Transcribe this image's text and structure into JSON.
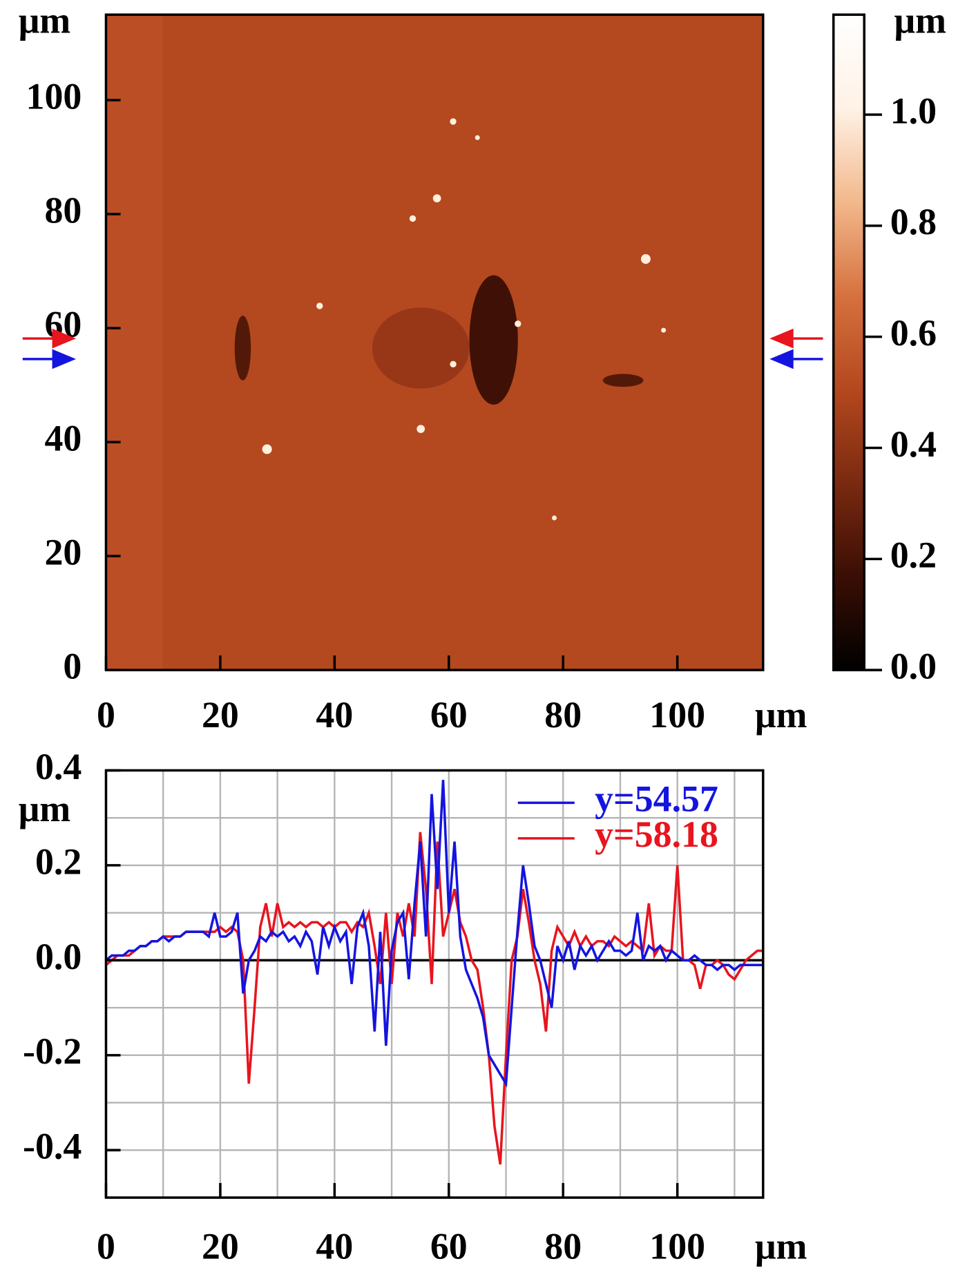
{
  "chart_data": [
    {
      "type": "image",
      "x_unit": "μm",
      "y_unit": "μm",
      "xlim": [
        0,
        115
      ],
      "ylim": [
        0,
        115
      ],
      "xticks": [
        0,
        20,
        40,
        60,
        80,
        100
      ],
      "yticks": [
        0,
        20,
        40,
        60,
        80,
        100
      ],
      "colorbar": {
        "unit": "μm",
        "lim": [
          0,
          1.18
        ],
        "ticks": [
          {
            "value": 0,
            "label": "0.0"
          },
          0.2,
          0.4,
          0.6,
          0.8,
          {
            "value": 1,
            "label": "1.0"
          }
        ],
        "colormap": [
          "#000000",
          "#3a0e04",
          "#7a2a10",
          "#b4481f",
          "#d6713f",
          "#f2b88c",
          "#fff2e6",
          "#ffffff"
        ]
      },
      "profile_lines": [
        {
          "y": 58.18,
          "color": "#e8141e"
        },
        {
          "y": 54.57,
          "color": "#1414e0"
        }
      ]
    },
    {
      "type": "line",
      "x_unit": "μm",
      "y_unit": "μm",
      "xlim": [
        0,
        115
      ],
      "ylim": [
        -0.5,
        0.4
      ],
      "xticks": [
        0,
        20,
        40,
        60,
        80,
        100
      ],
      "yticks": [
        0.4,
        0.2,
        {
          "value": 0,
          "label": "0.0"
        },
        -0.2,
        -0.4
      ],
      "grid": true,
      "xgrid": [
        0,
        10,
        20,
        30,
        40,
        50,
        60,
        70,
        80,
        90,
        100,
        110
      ],
      "ygrid": [
        -0.5,
        -0.4,
        -0.3,
        -0.2,
        -0.1,
        0,
        0.1,
        0.2,
        0.3,
        0.4
      ],
      "legend": "upper right",
      "x": [
        0,
        1,
        2,
        3,
        4,
        5,
        6,
        7,
        8,
        9,
        10,
        11,
        12,
        13,
        14,
        15,
        16,
        17,
        18,
        19,
        20,
        21,
        22,
        23,
        24,
        25,
        26,
        27,
        28,
        29,
        30,
        31,
        32,
        33,
        34,
        35,
        36,
        37,
        38,
        39,
        40,
        41,
        42,
        43,
        44,
        45,
        46,
        47,
        48,
        49,
        50,
        51,
        52,
        53,
        54,
        55,
        56,
        57,
        58,
        59,
        60,
        61,
        62,
        63,
        64,
        65,
        66,
        67,
        68,
        69,
        70,
        71,
        72,
        73,
        74,
        75,
        76,
        77,
        78,
        79,
        80,
        81,
        82,
        83,
        84,
        85,
        86,
        87,
        88,
        89,
        90,
        91,
        92,
        93,
        94,
        95,
        96,
        97,
        98,
        99,
        100,
        101,
        102,
        103,
        104,
        105,
        106,
        107,
        108,
        109,
        110,
        111,
        112,
        113,
        114,
        115
      ],
      "series": [
        {
          "name": "y=54.57",
          "color": "#1414e0",
          "values": [
            0,
            0.01,
            0.01,
            0.01,
            0.02,
            0.02,
            0.03,
            0.03,
            0.04,
            0.04,
            0.05,
            0.04,
            0.05,
            0.05,
            0.06,
            0.06,
            0.06,
            0.06,
            0.05,
            0.1,
            0.05,
            0.05,
            0.06,
            0.1,
            -0.07,
            0,
            0.02,
            0.05,
            0.04,
            0.06,
            0.05,
            0.06,
            0.04,
            0.05,
            0.03,
            0.06,
            0.04,
            -0.03,
            0.07,
            0.03,
            0.07,
            0.04,
            0.06,
            -0.05,
            0.07,
            0.1,
            0.03,
            -0.15,
            0.06,
            -0.18,
            0.02,
            0.08,
            0.1,
            -0.04,
            0.12,
            0.25,
            0.05,
            0.35,
            0.15,
            0.38,
            0.1,
            0.25,
            0.05,
            -0.02,
            -0.05,
            -0.08,
            -0.12,
            -0.2,
            -0.22,
            -0.24,
            -0.26,
            -0.1,
            0.06,
            0.2,
            0.12,
            0.03,
            0,
            -0.05,
            -0.1,
            0.03,
            0,
            0.04,
            -0.02,
            0.03,
            0.01,
            0.03,
            0,
            0.02,
            0.04,
            0.02,
            0.02,
            0.01,
            0.02,
            0.1,
            0,
            0.03,
            0.02,
            0.03,
            0,
            0.02,
            0.01,
            0,
            0,
            0.01,
            0,
            -0.01,
            -0.01,
            -0.02,
            -0.01,
            -0.01,
            -0.02,
            -0.01,
            -0.01,
            -0.01,
            -0.01,
            -0.01
          ]
        },
        {
          "name": "y=58.18",
          "color": "#e8141e",
          "values": [
            -0.01,
            0,
            0.01,
            0.01,
            0.01,
            0.02,
            0.03,
            0.03,
            0.04,
            0.04,
            0.05,
            0.05,
            0.05,
            0.05,
            0.06,
            0.06,
            0.06,
            0.06,
            0.06,
            0.06,
            0.07,
            0.06,
            0.07,
            0.06,
            0,
            -0.26,
            -0.1,
            0.07,
            0.12,
            0.05,
            0.12,
            0.07,
            0.08,
            0.07,
            0.08,
            0.07,
            0.08,
            0.08,
            0.07,
            0.08,
            0.07,
            0.08,
            0.08,
            0.06,
            0.08,
            0.07,
            0.1,
            0.03,
            -0.05,
            0.1,
            -0.05,
            0.1,
            0.05,
            0.12,
            0.05,
            0.27,
            0.15,
            -0.05,
            0.25,
            0.05,
            0.1,
            0.15,
            0.08,
            0.05,
            0,
            -0.02,
            -0.1,
            -0.2,
            -0.35,
            -0.43,
            -0.2,
            0,
            0.05,
            0.15,
            0.08,
            0,
            -0.05,
            -0.15,
            0.02,
            0.07,
            0.05,
            0.03,
            0.06,
            0.03,
            0.05,
            0.03,
            0.04,
            0.04,
            0.03,
            0.05,
            0.04,
            0.03,
            0.04,
            0.03,
            0.02,
            0.12,
            0.01,
            0.03,
            0.02,
            0.02,
            0.2,
            0,
            0,
            -0.01,
            -0.06,
            -0.01,
            -0.01,
            0,
            -0.01,
            -0.03,
            -0.04,
            -0.02,
            0,
            0.01,
            0.02,
            0.02
          ]
        }
      ]
    }
  ]
}
